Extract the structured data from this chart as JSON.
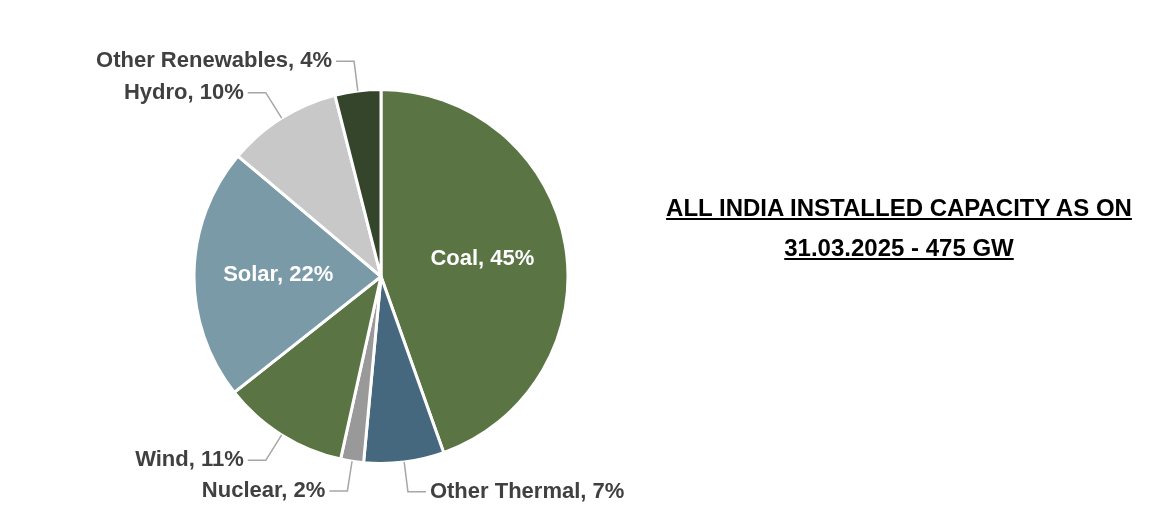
{
  "chart_data": {
    "type": "pie",
    "title": "ALL INDIA INSTALLED CAPACITY AS ON 31.03.2025 - 475 GW",
    "categories": [
      "Coal",
      "Other Thermal",
      "Nuclear",
      "Wind",
      "Solar",
      "Hydro",
      "Other Renewables"
    ],
    "values": [
      45,
      7,
      2,
      11,
      22,
      10,
      4
    ],
    "value_labels": [
      "45%",
      "7%",
      "2%",
      "11%",
      "22%",
      "10%",
      "4%"
    ],
    "colors": [
      "#5a7543",
      "#46687e",
      "#999999",
      "#5a7543",
      "#7a9aa8",
      "#c8c8c8",
      "#34452c"
    ],
    "legend": false
  }
}
